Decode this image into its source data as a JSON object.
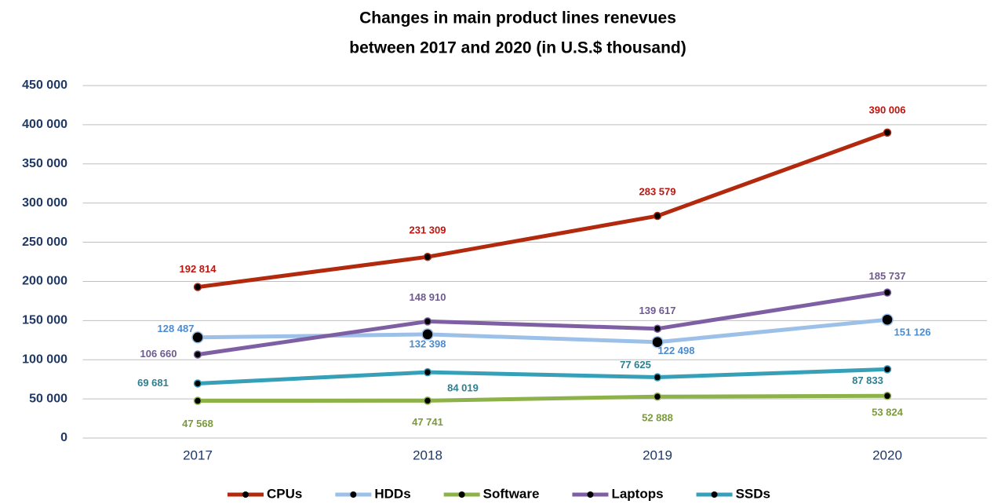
{
  "chart_data": {
    "type": "line",
    "title": [
      "Changes in main product lines renevues",
      "between 2017 and 2020 (in U.S.$ thousand)"
    ],
    "categories": [
      "2017",
      "2018",
      "2019",
      "2020"
    ],
    "series": [
      {
        "name": "CPUs",
        "color": "#b3290e",
        "label_color": "#c0150f",
        "values": [
          192814,
          231309,
          283579,
          390006
        ],
        "value_labels": [
          "192 814",
          "231 309",
          "283 579",
          "390 006"
        ]
      },
      {
        "name": "HDDs",
        "color": "#9dc0e8",
        "label_color": "#4f8bcc",
        "values": [
          128487,
          132398,
          122498,
          151126
        ],
        "value_labels": [
          "128 487",
          "132 398",
          "122 498",
          "151 126"
        ]
      },
      {
        "name": "Software",
        "color": "#8db24a",
        "label_color": "#7b9a3b",
        "values": [
          47568,
          47741,
          52888,
          53824
        ],
        "value_labels": [
          "47 568",
          "47 741",
          "52 888",
          "53 824"
        ]
      },
      {
        "name": "Laptops",
        "color": "#7f5fa3",
        "label_color": "#6f5a90",
        "values": [
          106660,
          148910,
          139617,
          185737
        ],
        "value_labels": [
          "106 660",
          "148 910",
          "139 617",
          "185 737"
        ]
      },
      {
        "name": "SSDs",
        "color": "#37a0b9",
        "label_color": "#2f7f90",
        "values": [
          69681,
          84019,
          77625,
          87833
        ],
        "value_labels": [
          "69 681",
          "84 019",
          "77 625",
          "87 833"
        ]
      }
    ],
    "ylim": [
      0,
      450000
    ],
    "yticks": [
      {
        "value": 0,
        "label": "0"
      },
      {
        "value": 50000,
        "label": "50 000"
      },
      {
        "value": 100000,
        "label": "100 000"
      },
      {
        "value": 150000,
        "label": "150 000"
      },
      {
        "value": 200000,
        "label": "200 000"
      },
      {
        "value": 250000,
        "label": "250 000"
      },
      {
        "value": 300000,
        "label": "300 000"
      },
      {
        "value": 350000,
        "label": "350 000"
      },
      {
        "value": 400000,
        "label": "400 000"
      },
      {
        "value": 450000,
        "label": "450 000"
      }
    ],
    "grid": true,
    "legend": "bottom"
  }
}
